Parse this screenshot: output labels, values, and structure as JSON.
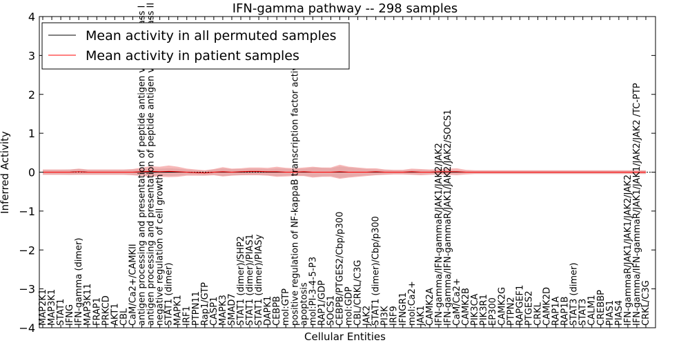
{
  "chart_data": {
    "type": "line",
    "title": "IFN-gamma pathway -- 298 samples",
    "xlabel": "Cellular Entities",
    "ylabel": "Inferred Activity",
    "ylim": [
      -4,
      4
    ],
    "yticks": [
      "−4",
      "−3",
      "−2",
      "−1",
      "0",
      "1",
      "2",
      "3",
      "4"
    ],
    "legend": {
      "position": "top-left",
      "entries": [
        {
          "label": "Mean activity in all permuted samples",
          "color": "#000000"
        },
        {
          "label": "Mean activity in patient samples",
          "color": "#ff0000"
        }
      ]
    },
    "categories": [
      "MAP2K1",
      "MAP3K1",
      "STAT1",
      "IFNG",
      "IFN-gamma (dimer)",
      "MAP3K11",
      "FRAP1",
      "PRKCD",
      "AKT1",
      "CBL",
      "CaM/Ca2+/CAMKII",
      "antigen processing and presentation of peptide antigen via MHC class I",
      "antigen processing and presentation of peptide antigen via MHC class II",
      "negative regulation of cell growth",
      "STAT1 (dimer)",
      "MAPK1",
      "IRF1",
      "PTPN11",
      "Rap1/GTP",
      "CASP1",
      "MAPK3",
      "SMAD7",
      "STAT1 (dimer)/SHP2",
      "STAT1 (dimer)/PIAS1",
      "STAT1 (dimer)/PIASy",
      "DAPK1",
      "CEBPB",
      "mol:GTP",
      "positive regulation of NF-kappaB transcription factor activity",
      "apoptosis",
      "mol:PI-3-4-5-P3",
      "RAP1/GDP",
      "SOCS1",
      "CEBPB/PTGES2/Cbp/p300",
      "mol:GDP",
      "CBL/CRKL/C3G",
      "JAK2",
      "STAT1 (dimer)/Cbp/p300",
      "PI3K",
      "IRF9",
      "IFNGR1",
      "mol:Ca2+",
      "JAK1",
      "CAMK2A",
      "IFN-gamma/IFN-gammaR/JAK1/JAK2/JAK2",
      "IFN-gamma/IFN-gammaR/JAK1/JAK2/JAK2/SOCS1",
      "CaM/Ca2+",
      "CAMK2B",
      "PIK3CA",
      "PIK3R1",
      "EP300",
      "CAMK2G",
      "PTPN2",
      "RAPGEF1",
      "PTGES2",
      "CRKL",
      "CAMK2D",
      "RAP1A",
      "RAP1B",
      "STAT3 (dimer)",
      "STAT3",
      "CALM1",
      "CREBBP",
      "PIAS1",
      "PIAS4",
      "IFN-gammaR/JAK1/JAK1/JAK2/JAK2",
      "IFN-gamma/IFN-gammaR/JAK1/JAK1/JAK2/JAK2  /TC-PTP",
      "CRKL/C3G"
    ],
    "series": [
      {
        "name": "Mean activity in all permuted samples",
        "values": [
          0.0,
          0.0,
          0.0,
          0.0,
          0.01,
          0.0,
          0.0,
          0.0,
          0.0,
          0.0,
          0.0,
          0.0,
          0.0,
          0.0,
          0.0,
          0.0,
          0.0,
          -0.01,
          -0.02,
          0.0,
          0.0,
          0.0,
          0.0,
          0.01,
          0.01,
          0.0,
          0.0,
          0.0,
          0.0,
          0.0,
          0.0,
          0.0,
          0.0,
          0.0,
          0.0,
          0.0,
          0.0,
          0.0,
          0.0,
          0.0,
          0.0,
          0.0,
          0.0,
          0.0,
          0.0,
          0.0,
          0.0,
          0.0,
          0.0,
          0.0,
          0.0,
          0.0,
          0.0,
          0.0,
          0.0,
          0.0,
          0.0,
          0.0,
          0.0,
          0.0,
          0.0,
          0.0,
          0.0,
          0.0,
          0.0,
          0.0,
          0.0,
          0.0
        ],
        "band": [
          0.06,
          0.06,
          0.06,
          0.07,
          0.07,
          0.06,
          0.06,
          0.06,
          0.06,
          0.06,
          0.07,
          0.08,
          0.09,
          0.09,
          0.1,
          0.09,
          0.07,
          0.06,
          0.06,
          0.07,
          0.1,
          0.08,
          0.08,
          0.08,
          0.08,
          0.08,
          0.1,
          0.09,
          0.08,
          0.09,
          0.12,
          0.11,
          0.1,
          0.15,
          0.12,
          0.1,
          0.08,
          0.07,
          0.06,
          0.05,
          0.05,
          0.06,
          0.06,
          0.05,
          0.05,
          0.05,
          0.05,
          0.04,
          0.04,
          0.04,
          0.04,
          0.04,
          0.04,
          0.04,
          0.04,
          0.04,
          0.04,
          0.04,
          0.04,
          0.04,
          0.04,
          0.04,
          0.04,
          0.04,
          0.04,
          0.04,
          0.04,
          0.04
        ]
      },
      {
        "name": "Mean activity in patient samples",
        "values": [
          0.0,
          0.0,
          0.0,
          0.0,
          0.01,
          0.0,
          0.0,
          0.0,
          0.0,
          0.0,
          0.0,
          0.01,
          0.02,
          0.01,
          0.02,
          0.01,
          0.0,
          -0.01,
          -0.02,
          0.0,
          0.01,
          0.0,
          0.01,
          0.02,
          0.02,
          0.01,
          0.01,
          0.0,
          0.0,
          0.01,
          0.0,
          0.0,
          0.0,
          0.01,
          0.0,
          0.0,
          0.0,
          0.01,
          0.0,
          0.0,
          0.0,
          0.01,
          0.0,
          0.0,
          0.01,
          0.01,
          0.01,
          0.0,
          0.0,
          0.0,
          0.0,
          0.0,
          0.0,
          0.0,
          0.0,
          0.0,
          0.0,
          0.0,
          0.0,
          0.0,
          0.0,
          0.0,
          0.0,
          0.0,
          0.0,
          0.0,
          0.0,
          0.0
        ],
        "band": [
          0.07,
          0.07,
          0.07,
          0.07,
          0.08,
          0.07,
          0.07,
          0.07,
          0.07,
          0.07,
          0.08,
          0.11,
          0.13,
          0.13,
          0.15,
          0.13,
          0.09,
          0.08,
          0.07,
          0.08,
          0.12,
          0.09,
          0.09,
          0.1,
          0.1,
          0.1,
          0.13,
          0.11,
          0.1,
          0.11,
          0.14,
          0.12,
          0.12,
          0.18,
          0.14,
          0.12,
          0.1,
          0.09,
          0.07,
          0.06,
          0.06,
          0.08,
          0.08,
          0.07,
          0.07,
          0.08,
          0.09,
          0.06,
          0.05,
          0.05,
          0.05,
          0.05,
          0.05,
          0.05,
          0.05,
          0.05,
          0.05,
          0.05,
          0.05,
          0.05,
          0.05,
          0.05,
          0.05,
          0.05,
          0.05,
          0.05,
          0.05,
          0.05
        ]
      }
    ]
  }
}
